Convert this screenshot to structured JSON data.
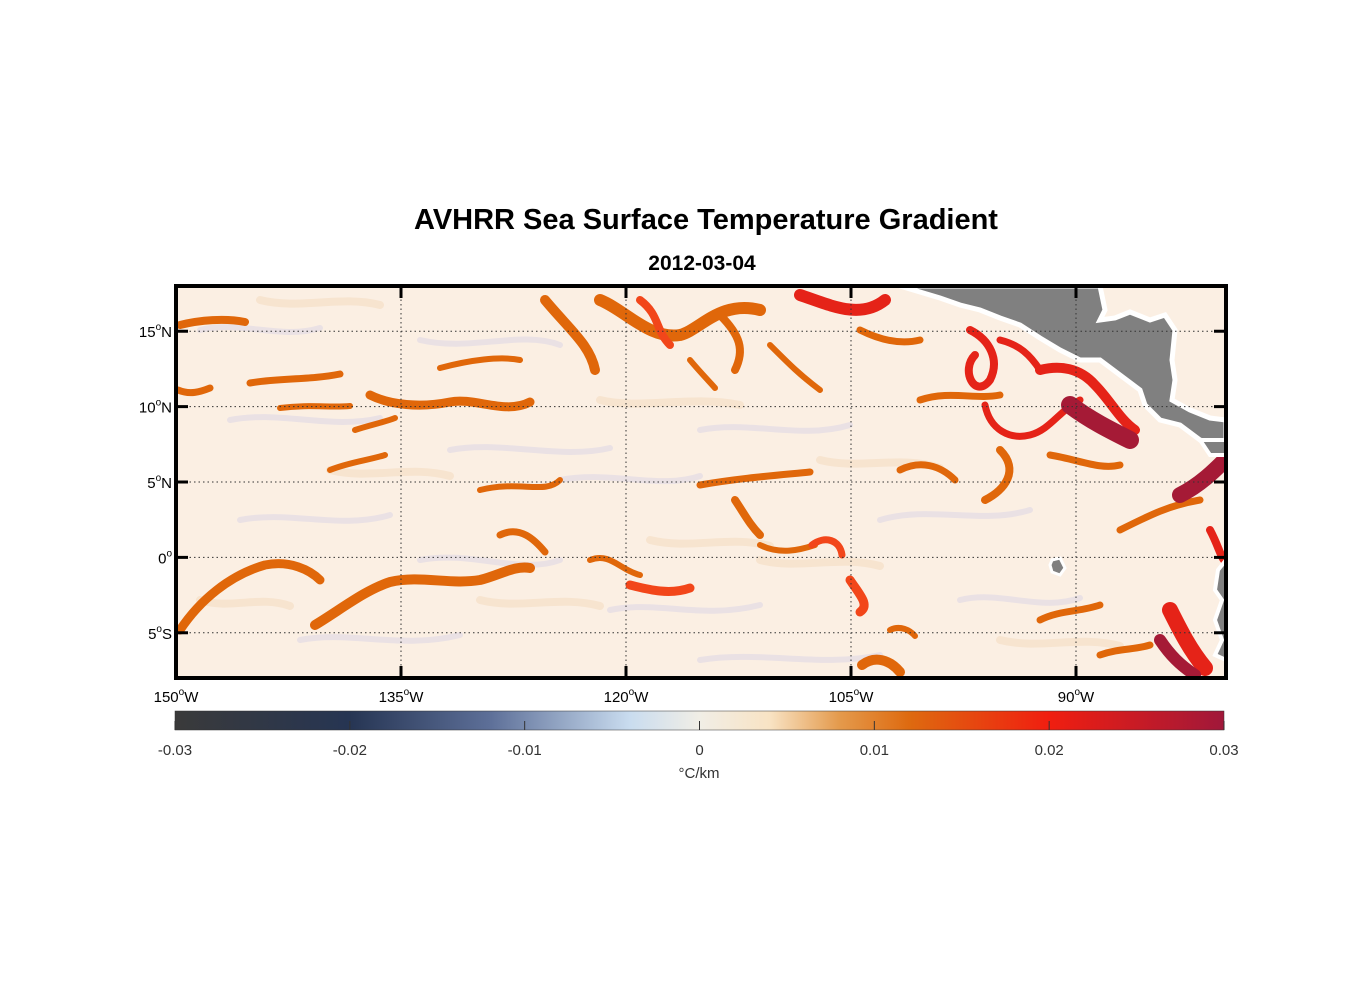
{
  "title": "AVHRR Sea Surface Temperature Gradient",
  "subtitle": "2012-03-04",
  "map": {
    "lon_range": [
      -150,
      -80
    ],
    "lat_range": [
      -8,
      18
    ],
    "grid": true,
    "lon_ticks": [
      {
        "value": -150,
        "deg": "150",
        "hemi": "W"
      },
      {
        "value": -135,
        "deg": "135",
        "hemi": "W"
      },
      {
        "value": -120,
        "deg": "120",
        "hemi": "W"
      },
      {
        "value": -105,
        "deg": "105",
        "hemi": "W"
      },
      {
        "value": -90,
        "deg": "90",
        "hemi": "W"
      }
    ],
    "lat_ticks": [
      {
        "value": 15,
        "deg": "15",
        "hemi": "N"
      },
      {
        "value": 10,
        "deg": "10",
        "hemi": "N"
      },
      {
        "value": 5,
        "deg": "5",
        "hemi": "N"
      },
      {
        "value": 0,
        "deg": "0",
        "hemi": ""
      },
      {
        "value": -5,
        "deg": "5",
        "hemi": "S"
      }
    ],
    "ocean_base_color": "#fbefe3",
    "land_color": "#808080",
    "front_color": "#e0670a",
    "strong_front_color": "#e52318",
    "peak_front_color": "#a51a36"
  },
  "colorbar": {
    "range": [
      -0.03,
      0.03
    ],
    "ticks": [
      "-0.03",
      "-0.02",
      "-0.01",
      "0",
      "0.01",
      "0.02",
      "0.03"
    ],
    "label": "°C/km",
    "stops": [
      {
        "value": -0.03,
        "color": "#3a3a3a"
      },
      {
        "value": -0.02,
        "color": "#263553"
      },
      {
        "value": -0.012,
        "color": "#5d6f98"
      },
      {
        "value": -0.004,
        "color": "#c9dcef"
      },
      {
        "value": 0.0,
        "color": "#f1eee6"
      },
      {
        "value": 0.004,
        "color": "#f8e3c4"
      },
      {
        "value": 0.008,
        "color": "#e49a4c"
      },
      {
        "value": 0.012,
        "color": "#de6a10"
      },
      {
        "value": 0.02,
        "color": "#f01e10"
      },
      {
        "value": 0.03,
        "color": "#a0183a"
      }
    ]
  }
}
